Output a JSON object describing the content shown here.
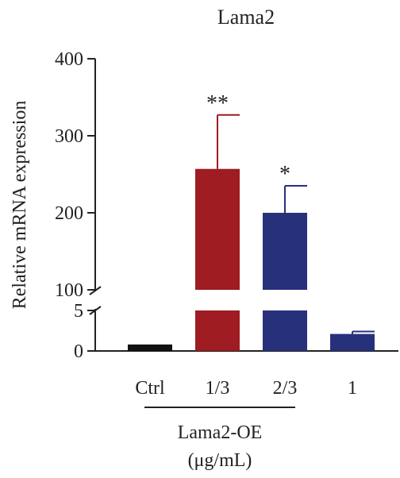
{
  "chart_data": {
    "type": "bar",
    "title": "Lama2",
    "ylabel": "Relative mRNA expression",
    "xlabel": "",
    "categories": [
      "Ctrl",
      "1/3",
      "2/3",
      "1"
    ],
    "values": [
      0.8,
      257,
      200,
      2.1
    ],
    "errors": [
      0,
      70,
      35,
      0.3
    ],
    "significance": [
      "",
      "**",
      "*",
      ""
    ],
    "colors": [
      "#111111",
      "#9e1c22",
      "#27307a",
      "#27307a"
    ],
    "y_axis_break": {
      "lower_range": [
        0,
        5
      ],
      "upper_range": [
        100,
        400
      ]
    },
    "lower_ticks": [
      0,
      5
    ],
    "upper_ticks": [
      100,
      200,
      300,
      400
    ],
    "group_label": "Lama2-OE",
    "group_categories": [
      "1/3",
      "2/3",
      "1"
    ],
    "unit_label": "(μg/mL)",
    "grid": false,
    "legend": "none"
  }
}
